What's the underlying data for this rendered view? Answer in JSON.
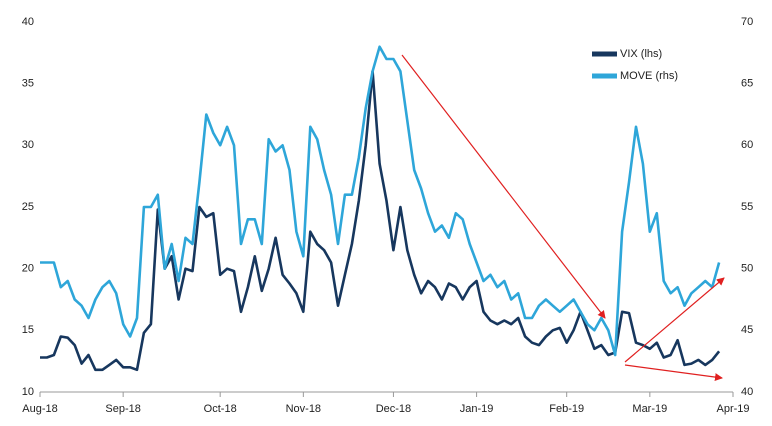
{
  "chart_data": {
    "type": "line",
    "categories": [
      "Aug-18",
      null,
      null,
      null,
      null,
      null,
      null,
      null,
      null,
      null,
      null,
      null,
      "Sep-18",
      null,
      null,
      null,
      null,
      null,
      null,
      null,
      null,
      null,
      null,
      null,
      null,
      null,
      "Oct-18",
      null,
      null,
      null,
      null,
      null,
      null,
      null,
      null,
      null,
      null,
      null,
      "Nov-18",
      null,
      null,
      null,
      null,
      null,
      null,
      null,
      null,
      null,
      null,
      null,
      null,
      "Dec-18",
      null,
      null,
      null,
      null,
      null,
      null,
      null,
      null,
      null,
      null,
      null,
      "Jan-19",
      null,
      null,
      null,
      null,
      null,
      null,
      null,
      null,
      null,
      null,
      null,
      null,
      "Feb-19",
      null,
      null,
      null,
      null,
      null,
      null,
      null,
      null,
      null,
      null,
      null,
      "Mar-19",
      null,
      null,
      null,
      null,
      null,
      null,
      null,
      null,
      null,
      null,
      null,
      "Apr-19"
    ],
    "series": [
      {
        "name": "VIX (lhs)",
        "color": "#17375e",
        "axis": "y",
        "values": [
          12.8,
          12.8,
          13.0,
          14.5,
          14.4,
          13.8,
          12.3,
          13.0,
          11.8,
          11.8,
          12.2,
          12.6,
          12.0,
          12.0,
          11.8,
          14.8,
          15.5,
          24.8,
          20.0,
          21.0,
          17.5,
          20.0,
          19.8,
          25.0,
          24.2,
          24.5,
          19.5,
          20.0,
          19.8,
          16.5,
          18.5,
          21.0,
          18.2,
          20.0,
          22.5,
          19.5,
          18.8,
          18.0,
          16.5,
          23.0,
          22.0,
          21.5,
          20.5,
          17.0,
          19.5,
          22.0,
          25.5,
          30.0,
          36.0,
          28.5,
          25.5,
          21.5,
          25.0,
          21.5,
          19.5,
          18.0,
          19.0,
          18.5,
          17.5,
          18.8,
          18.5,
          17.5,
          18.5,
          19.0,
          16.5,
          15.8,
          15.5,
          15.8,
          15.5,
          16.0,
          14.5,
          14.0,
          13.8,
          14.5,
          15.0,
          15.2,
          14.0,
          15.0,
          16.5,
          15.0,
          13.5,
          13.8,
          13.0,
          13.2,
          16.5,
          16.4,
          14.0,
          13.8,
          13.5,
          14.0,
          12.8,
          13.0,
          14.2,
          12.2,
          12.3,
          12.6,
          12.2,
          12.6,
          13.3,
          null,
          null
        ]
      },
      {
        "name": "MOVE (rhs)",
        "color": "#2ea6d9",
        "axis": "y2",
        "values": [
          50.5,
          50.5,
          50.5,
          48.5,
          49.0,
          47.5,
          47.0,
          46.0,
          47.5,
          48.5,
          49.0,
          48.0,
          45.5,
          44.5,
          46.0,
          55.0,
          55.0,
          56.0,
          50.0,
          52.0,
          49.0,
          52.5,
          52.0,
          57.0,
          62.5,
          61.0,
          60.0,
          61.5,
          60.0,
          52.0,
          54.0,
          54.0,
          52.0,
          60.5,
          59.5,
          60.0,
          58.0,
          53.0,
          51.0,
          61.5,
          60.5,
          58.0,
          56.0,
          52.0,
          56.0,
          56.0,
          59.0,
          63.0,
          66.0,
          68.0,
          67.0,
          67.0,
          66.0,
          62.0,
          58.0,
          56.5,
          54.5,
          53.0,
          53.5,
          52.5,
          54.5,
          54.0,
          52.0,
          50.5,
          49.0,
          49.5,
          48.5,
          49.0,
          47.5,
          48.0,
          46.0,
          46.0,
          47.0,
          47.5,
          47.0,
          46.5,
          47.0,
          47.5,
          46.5,
          45.5,
          45.0,
          46.0,
          45.0,
          43.0,
          53.0,
          57.0,
          61.5,
          58.5,
          53.0,
          54.5,
          49.0,
          48.0,
          48.5,
          47.0,
          48.0,
          48.5,
          49.0,
          48.5,
          50.5,
          null,
          null
        ]
      }
    ],
    "ylim": [
      10,
      40
    ],
    "yticks": [
      10,
      15,
      20,
      25,
      30,
      35,
      40
    ],
    "y2lim": [
      40,
      70
    ],
    "y2ticks": [
      40,
      45,
      50,
      55,
      60,
      65,
      70
    ],
    "grid": false,
    "legend": "upper-right"
  }
}
